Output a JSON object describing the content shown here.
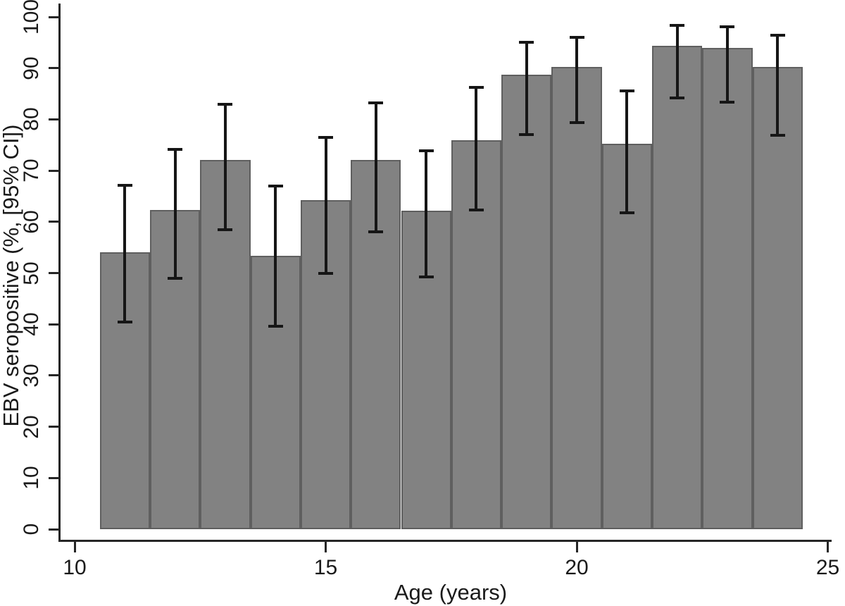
{
  "chart_data": {
    "type": "bar",
    "title": "",
    "xlabel": "Age (years)",
    "ylabel": "EBV seropositive (%, [95% CI])",
    "categories": [
      11,
      12,
      13,
      14,
      15,
      16,
      17,
      18,
      19,
      20,
      21,
      22,
      23,
      24
    ],
    "series": [
      {
        "name": "EBV seropositive (%)",
        "values": [
          54.1,
          62.3,
          72.1,
          53.4,
          64.2,
          72.1,
          62.2,
          76.0,
          88.7,
          90.2,
          75.3,
          94.4,
          94.0,
          90.2
        ],
        "ci_low": [
          40.5,
          49.0,
          58.4,
          39.6,
          50.0,
          58.0,
          49.2,
          62.3,
          77.0,
          79.4,
          61.8,
          84.2,
          83.3,
          76.9
        ],
        "ci_high": [
          67.2,
          74.2,
          82.9,
          67.0,
          76.5,
          83.2,
          73.9,
          86.2,
          95.0,
          96.0,
          85.6,
          98.4,
          98.1,
          96.4
        ]
      }
    ],
    "bar_width_years": 1,
    "xlim": [
      9.7,
      25.4
    ],
    "ylim": [
      0,
      100
    ],
    "grid": false,
    "legend_position": "none",
    "xticks": {
      "positions": [
        10,
        15,
        20,
        25
      ],
      "labels": [
        "10",
        "15",
        "20",
        "25"
      ]
    },
    "yticks": {
      "positions": [
        0,
        10,
        20,
        30,
        40,
        50,
        60,
        70,
        80,
        90,
        100
      ],
      "labels": [
        "0",
        "10",
        "20",
        "30",
        "40",
        "50",
        "60",
        "70",
        "80",
        "90",
        "100"
      ]
    },
    "colors": {
      "bar_fill": "#828282",
      "bar_border": "#5f5f5f",
      "error_bar": "#161616",
      "axis": "#262626",
      "text": "#1a1a1a",
      "background": "#ffffff"
    }
  }
}
